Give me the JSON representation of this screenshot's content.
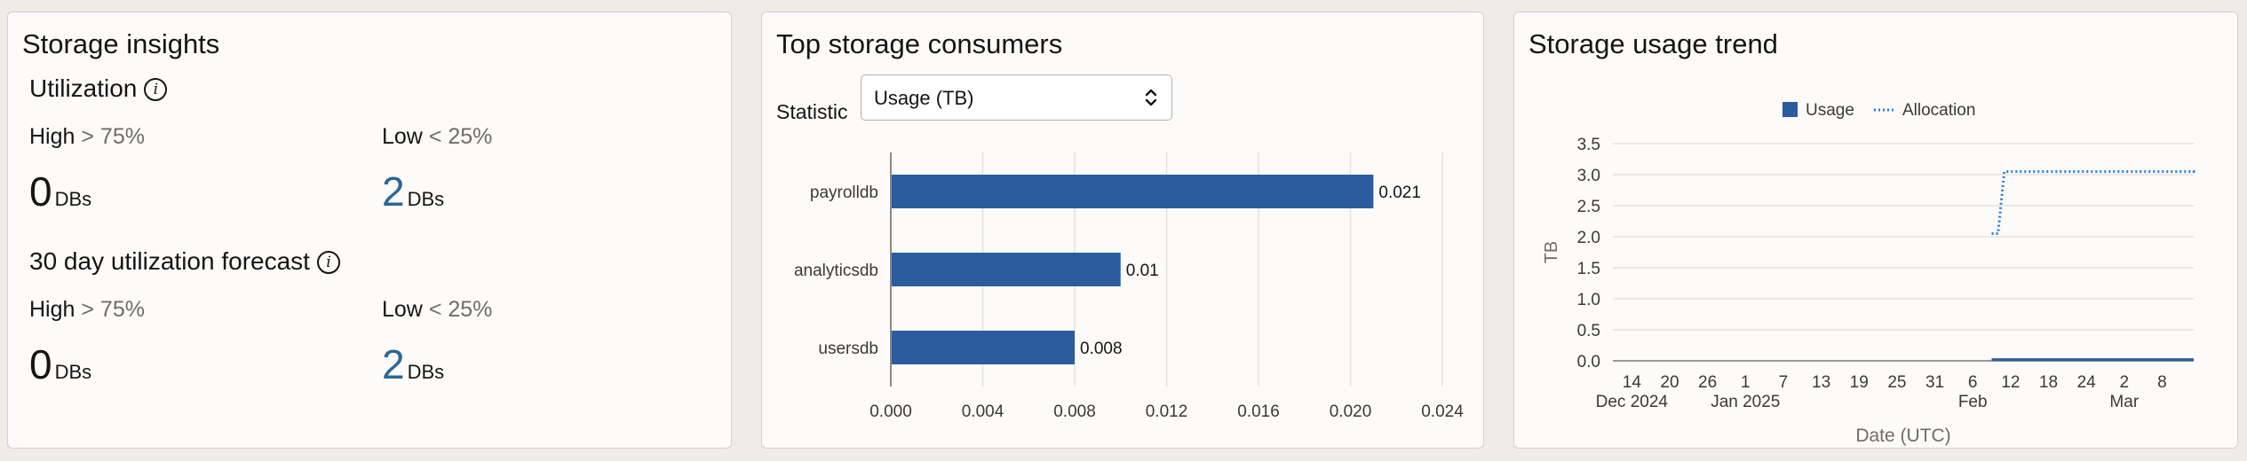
{
  "insights": {
    "title": "Storage insights",
    "utilization": {
      "title": "Utilization",
      "info_icon": "info-icon",
      "high": {
        "label": "High",
        "threshold": "> 75%",
        "count": "0",
        "unit": "DBs"
      },
      "low": {
        "label": "Low",
        "threshold": "< 25%",
        "count": "2",
        "unit": "DBs"
      }
    },
    "forecast": {
      "title": "30 day utilization forecast",
      "info_icon": "info-icon",
      "high": {
        "label": "High",
        "threshold": "> 75%",
        "count": "0",
        "unit": "DBs"
      },
      "low": {
        "label": "Low",
        "threshold": "< 25%",
        "count": "2",
        "unit": "DBs"
      }
    },
    "colors": {
      "blue_count": "#2b6695"
    }
  },
  "consumers": {
    "title": "Top storage consumers",
    "statistic_label": "Statistic",
    "statistic_value": "Usage (TB)",
    "select_icon": "chevron-up-down-icon"
  },
  "trend": {
    "title": "Storage usage trend"
  },
  "chart_data": [
    {
      "type": "bar",
      "orientation": "horizontal",
      "categories": [
        "payrolldb",
        "analyticsdb",
        "usersdb"
      ],
      "values": [
        0.021,
        0.01,
        0.008
      ],
      "data_labels": [
        "0.021",
        "0.01",
        "0.008"
      ],
      "xlim": [
        0,
        0.024
      ],
      "xticks": [
        "0.000",
        "0.004",
        "0.008",
        "0.012",
        "0.016",
        "0.020",
        "0.024"
      ],
      "grid": true,
      "color": "#2a5c9e"
    },
    {
      "type": "line",
      "x_start": "2024-12-11",
      "x_end": "2025-03-13",
      "ylabel": "TB",
      "xlabel": "Date (UTC)",
      "ylim": [
        0,
        3.5
      ],
      "yticks": [
        "0.0",
        "0.5",
        "1.0",
        "1.5",
        "2.0",
        "2.5",
        "3.0",
        "3.5"
      ],
      "xticks": [
        {
          "date": "2024-12-14",
          "label": "14",
          "sub": "Dec 2024"
        },
        {
          "date": "2024-12-20",
          "label": "20",
          "sub": ""
        },
        {
          "date": "2024-12-26",
          "label": "26",
          "sub": ""
        },
        {
          "date": "2025-01-01",
          "label": "1",
          "sub": "Jan 2025"
        },
        {
          "date": "2025-01-07",
          "label": "7",
          "sub": ""
        },
        {
          "date": "2025-01-13",
          "label": "13",
          "sub": ""
        },
        {
          "date": "2025-01-19",
          "label": "19",
          "sub": ""
        },
        {
          "date": "2025-01-25",
          "label": "25",
          "sub": ""
        },
        {
          "date": "2025-01-31",
          "label": "31",
          "sub": ""
        },
        {
          "date": "2025-02-06",
          "label": "6",
          "sub": "Feb"
        },
        {
          "date": "2025-02-12",
          "label": "12",
          "sub": ""
        },
        {
          "date": "2025-02-18",
          "label": "18",
          "sub": ""
        },
        {
          "date": "2025-02-24",
          "label": "24",
          "sub": ""
        },
        {
          "date": "2025-03-02",
          "label": "2",
          "sub": "Mar"
        },
        {
          "date": "2025-03-08",
          "label": "8",
          "sub": ""
        }
      ],
      "legend": {
        "placement": "top-center"
      },
      "grid": true,
      "series": [
        {
          "name": "Usage",
          "style": "solid",
          "color": "#2a5c9e",
          "points": [
            [
              "2025-02-09",
              0.02
            ],
            [
              "2025-03-13",
              0.02
            ]
          ]
        },
        {
          "name": "Allocation",
          "style": "dotted",
          "color": "#2b7de0",
          "points": [
            [
              "2025-02-09",
              2.05
            ],
            [
              "2025-02-10",
              2.05
            ],
            [
              "2025-02-11",
              3.05
            ],
            [
              "2025-03-13",
              3.05
            ],
            [
              "2025-03-13",
              3.0
            ]
          ]
        }
      ]
    }
  ]
}
